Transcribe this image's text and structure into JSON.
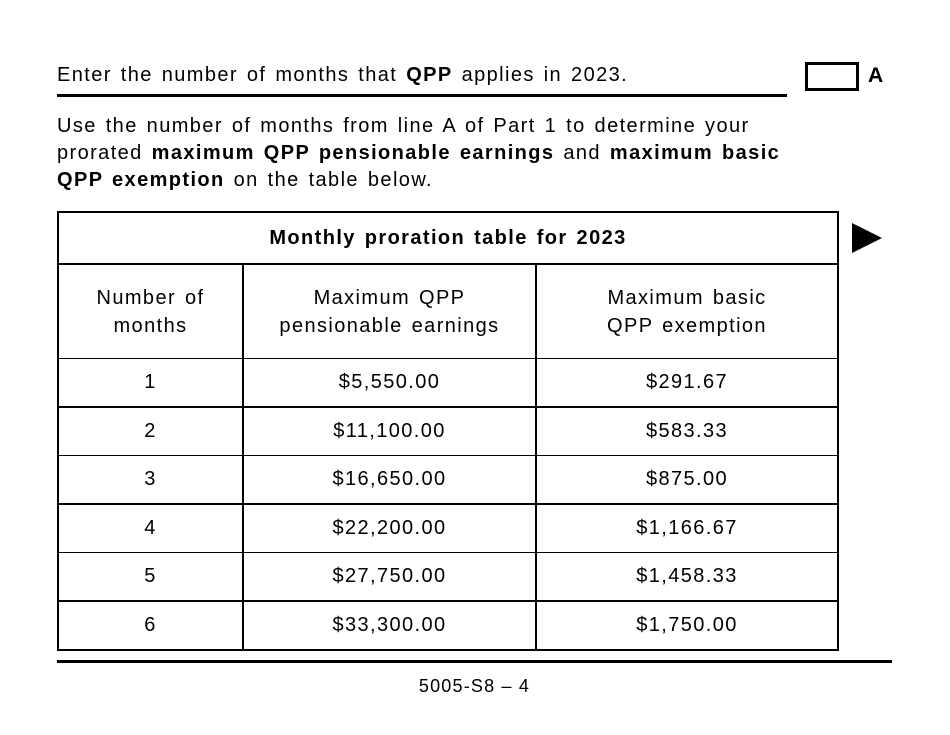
{
  "colors": {
    "text": "#000000",
    "background": "#ffffff",
    "border": "#000000"
  },
  "line_a": {
    "segments": [
      {
        "text": "Enter the number of months that ",
        "bold": false
      },
      {
        "text": "QPP",
        "bold": true
      },
      {
        "text": " applies in 2023.",
        "bold": false
      }
    ],
    "input_value": "",
    "label": "A"
  },
  "intro": {
    "lines": [
      [
        {
          "text": "Use the number of months from line A of Part 1 to determine your",
          "bold": false
        }
      ],
      [
        {
          "text": "prorated ",
          "bold": false
        },
        {
          "text": "maximum QPP pensionable earnings",
          "bold": true
        },
        {
          "text": " and ",
          "bold": false
        },
        {
          "text": "maximum basic",
          "bold": true
        }
      ],
      [
        {
          "text": "QPP exemption",
          "bold": true
        },
        {
          "text": " on the table below.",
          "bold": false
        }
      ]
    ]
  },
  "table": {
    "title": "Monthly proration table for 2023",
    "columns": [
      "Number of\nmonths",
      "Maximum QPP\npensionable earnings",
      "Maximum basic\nQPP exemption"
    ],
    "rows": [
      [
        "1",
        "$5,550.00",
        "$291.67"
      ],
      [
        "2",
        "$11,100.00",
        "$583.33"
      ],
      [
        "3",
        "$16,650.00",
        "$875.00"
      ],
      [
        "4",
        "$22,200.00",
        "$1,166.67"
      ],
      [
        "5",
        "$27,750.00",
        "$1,458.33"
      ],
      [
        "6",
        "$33,300.00",
        "$1,750.00"
      ]
    ]
  },
  "footer": {
    "page_number": "5005-S8 – 4"
  }
}
